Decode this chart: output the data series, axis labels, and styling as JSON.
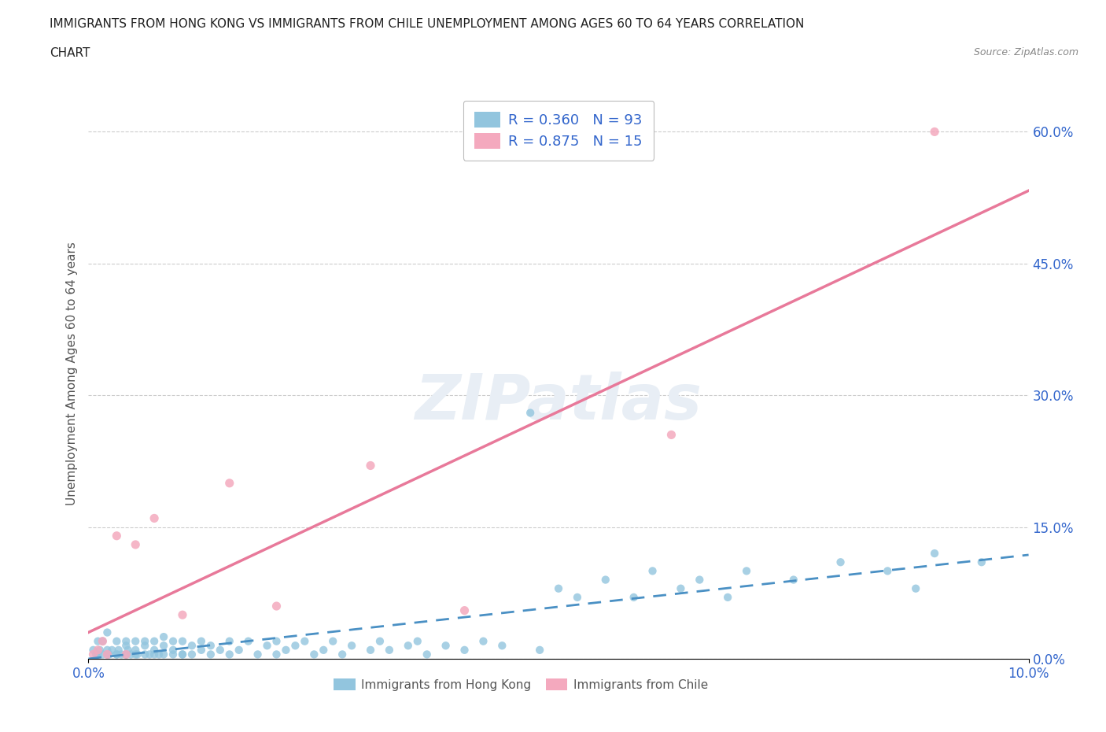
{
  "title_line1": "IMMIGRANTS FROM HONG KONG VS IMMIGRANTS FROM CHILE UNEMPLOYMENT AMONG AGES 60 TO 64 YEARS CORRELATION",
  "title_line2": "CHART",
  "source": "Source: ZipAtlas.com",
  "ylabel": "Unemployment Among Ages 60 to 64 years",
  "right_yticks": [
    0.0,
    0.15,
    0.3,
    0.45,
    0.6
  ],
  "right_ytick_labels": [
    "0.0%",
    "15.0%",
    "30.0%",
    "45.0%",
    "60.0%"
  ],
  "hk_color": "#92C5DE",
  "chile_color": "#F4A9BE",
  "hk_trend_color": "#4A90C4",
  "chile_trend_color": "#E8799A",
  "hk_R": 0.36,
  "hk_N": 93,
  "chile_R": 0.875,
  "chile_N": 15,
  "legend_text_color": "#3366CC",
  "axis_color": "#3366CC",
  "watermark_color": "#E8EEF5",
  "xlim": [
    0,
    0.1
  ],
  "ylim": [
    0,
    0.65
  ],
  "hk_scatter_x": [
    0.0005,
    0.0008,
    0.001,
    0.001,
    0.0012,
    0.0015,
    0.0015,
    0.002,
    0.002,
    0.002,
    0.0022,
    0.0025,
    0.003,
    0.003,
    0.003,
    0.0032,
    0.0035,
    0.004,
    0.004,
    0.004,
    0.0042,
    0.0045,
    0.005,
    0.005,
    0.005,
    0.0052,
    0.006,
    0.006,
    0.006,
    0.0065,
    0.007,
    0.007,
    0.007,
    0.0075,
    0.008,
    0.008,
    0.008,
    0.009,
    0.009,
    0.009,
    0.01,
    0.01,
    0.01,
    0.011,
    0.011,
    0.012,
    0.012,
    0.013,
    0.013,
    0.014,
    0.015,
    0.015,
    0.016,
    0.017,
    0.018,
    0.019,
    0.02,
    0.02,
    0.021,
    0.022,
    0.023,
    0.024,
    0.025,
    0.026,
    0.027,
    0.028,
    0.03,
    0.031,
    0.032,
    0.034,
    0.035,
    0.036,
    0.038,
    0.04,
    0.042,
    0.044,
    0.047,
    0.048,
    0.05,
    0.052,
    0.055,
    0.058,
    0.06,
    0.063,
    0.065,
    0.068,
    0.07,
    0.075,
    0.08,
    0.085,
    0.088,
    0.09,
    0.095
  ],
  "hk_scatter_y": [
    0.01,
    0.005,
    0.02,
    0.005,
    0.01,
    0.005,
    0.02,
    0.01,
    0.005,
    0.03,
    0.005,
    0.01,
    0.005,
    0.02,
    0.005,
    0.01,
    0.005,
    0.02,
    0.005,
    0.015,
    0.01,
    0.005,
    0.02,
    0.005,
    0.01,
    0.005,
    0.015,
    0.005,
    0.02,
    0.005,
    0.01,
    0.005,
    0.02,
    0.005,
    0.015,
    0.005,
    0.025,
    0.005,
    0.01,
    0.02,
    0.005,
    0.02,
    0.005,
    0.015,
    0.005,
    0.01,
    0.02,
    0.005,
    0.015,
    0.01,
    0.02,
    0.005,
    0.01,
    0.02,
    0.005,
    0.015,
    0.02,
    0.005,
    0.01,
    0.015,
    0.02,
    0.005,
    0.01,
    0.02,
    0.005,
    0.015,
    0.01,
    0.02,
    0.01,
    0.015,
    0.02,
    0.005,
    0.015,
    0.01,
    0.02,
    0.015,
    0.28,
    0.01,
    0.08,
    0.07,
    0.09,
    0.07,
    0.1,
    0.08,
    0.09,
    0.07,
    0.1,
    0.09,
    0.11,
    0.1,
    0.08,
    0.12,
    0.11
  ],
  "chile_scatter_x": [
    0.0005,
    0.001,
    0.0015,
    0.002,
    0.003,
    0.004,
    0.005,
    0.007,
    0.01,
    0.015,
    0.02,
    0.03,
    0.04,
    0.062,
    0.09
  ],
  "chile_scatter_y": [
    0.005,
    0.01,
    0.02,
    0.005,
    0.14,
    0.005,
    0.13,
    0.16,
    0.05,
    0.2,
    0.06,
    0.22,
    0.055,
    0.255,
    0.6
  ]
}
